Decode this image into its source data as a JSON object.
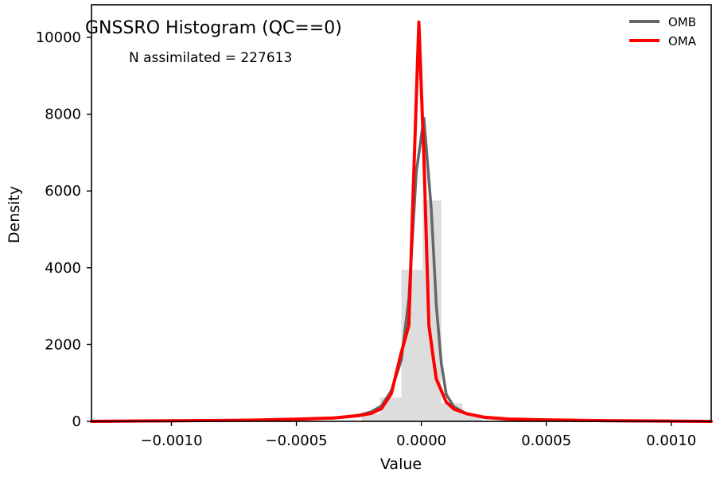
{
  "chart_data": {
    "type": "line",
    "title": "GNSSRO Histogram (QC==0)",
    "annotation": "N assimilated = 227613",
    "xlabel": "Value",
    "ylabel": "Density",
    "xlim": [
      -0.00132,
      0.00116
    ],
    "ylim": [
      0,
      10850
    ],
    "xticks": [
      -0.001,
      -0.0005,
      0,
      0.0005,
      0.001
    ],
    "xtick_labels": [
      "−0.0010",
      "−0.0005",
      "0.0000",
      "0.0005",
      "0.0010"
    ],
    "yticks": [
      0,
      2000,
      4000,
      6000,
      8000,
      10000
    ],
    "ytick_labels": [
      "0",
      "2000",
      "4000",
      "6000",
      "8000",
      "10000"
    ],
    "grid": false,
    "legend_position": "top-right",
    "histogram": {
      "color": "#dddddd",
      "bin_edges": [
        -0.00024,
        -0.000165,
        -8e-05,
        5e-06,
        8e-05,
        0.000165,
        0.00024
      ],
      "values": [
        190,
        620,
        3950,
        5750,
        470,
        170
      ]
    },
    "series": [
      {
        "name": "OMB",
        "color": "#666666",
        "x": [
          -0.00132,
          -0.001,
          -0.0007,
          -0.0005,
          -0.00035,
          -0.00025,
          -0.0002,
          -0.00016,
          -0.00012,
          -8e-05,
          -5e-05,
          -2e-05,
          1e-05,
          4e-05,
          6e-05,
          8e-05,
          0.0001,
          0.00013,
          0.00018,
          0.00025,
          0.00035,
          0.0005,
          0.0007,
          0.00116
        ],
        "y": [
          0,
          10,
          30,
          55,
          90,
          160,
          250,
          400,
          800,
          1600,
          3200,
          6500,
          7900,
          5500,
          3000,
          1500,
          700,
          380,
          200,
          100,
          55,
          30,
          15,
          0
        ]
      },
      {
        "name": "OMA",
        "color": "#ff0000",
        "x": [
          -0.00132,
          -0.001,
          -0.0007,
          -0.0005,
          -0.00035,
          -0.00025,
          -0.0002,
          -0.00016,
          -0.00012,
          -8e-05,
          -5e-05,
          -3e-05,
          -1e-05,
          1e-05,
          3e-05,
          5e-05,
          6e-05,
          0.0001,
          0.00013,
          0.00018,
          0.00025,
          0.00035,
          0.0005,
          0.0007,
          0.00116
        ],
        "y": [
          0,
          15,
          30,
          55,
          90,
          150,
          210,
          330,
          720,
          1800,
          2500,
          6500,
          10400,
          6900,
          2500,
          1550,
          1100,
          500,
          320,
          200,
          110,
          60,
          40,
          20,
          0
        ]
      }
    ]
  }
}
